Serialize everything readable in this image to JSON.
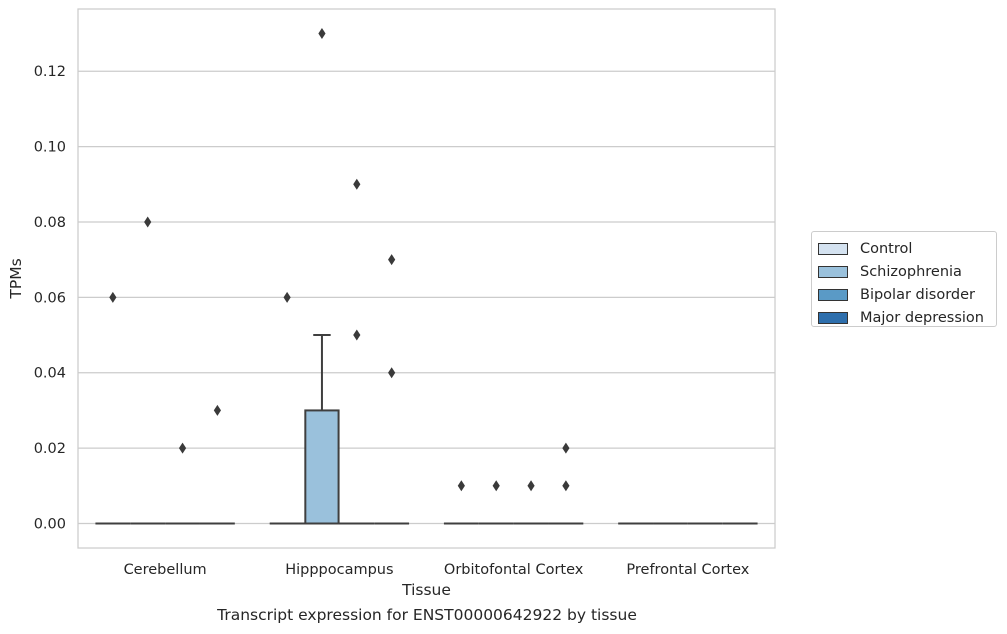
{
  "chart_data": {
    "type": "box",
    "xlabel": "Tissue",
    "ylabel": "TPMs",
    "ylim": [
      -0.0065,
      0.1365
    ],
    "yticks": [
      0.0,
      0.02,
      0.04,
      0.06,
      0.08,
      0.1,
      0.12
    ],
    "ytick_labels": [
      "0.00",
      "0.02",
      "0.04",
      "0.06",
      "0.08",
      "0.10",
      "0.12"
    ],
    "categories": [
      "Cerebellum",
      "Hipppocampus",
      "Orbitofontal Cortex",
      "Prefrontal Cortex"
    ],
    "grid": "horizontal",
    "legend_position": "right",
    "series": [
      {
        "name": "Control",
        "color": "#d4e2f0",
        "boxes": [
          {
            "q1": 0,
            "median": 0,
            "q3": 0,
            "whisker_low": 0,
            "whisker_high": 0,
            "outliers": [
              0.06
            ]
          },
          {
            "q1": 0,
            "median": 0,
            "q3": 0,
            "whisker_low": 0,
            "whisker_high": 0,
            "outliers": [
              0.06
            ]
          },
          {
            "q1": 0,
            "median": 0,
            "q3": 0,
            "whisker_low": 0,
            "whisker_high": 0,
            "outliers": [
              0.01
            ]
          },
          {
            "q1": 0,
            "median": 0,
            "q3": 0,
            "whisker_low": 0,
            "whisker_high": 0,
            "outliers": []
          }
        ]
      },
      {
        "name": "Schizophrenia",
        "color": "#9ac1dc",
        "boxes": [
          {
            "q1": 0,
            "median": 0,
            "q3": 0,
            "whisker_low": 0,
            "whisker_high": 0,
            "outliers": [
              0.08
            ]
          },
          {
            "q1": 0,
            "median": 0,
            "q3": 0.03,
            "whisker_low": 0,
            "whisker_high": 0.05,
            "outliers": [
              0.13
            ]
          },
          {
            "q1": 0,
            "median": 0,
            "q3": 0,
            "whisker_low": 0,
            "whisker_high": 0,
            "outliers": [
              0.01
            ]
          },
          {
            "q1": 0,
            "median": 0,
            "q3": 0,
            "whisker_low": 0,
            "whisker_high": 0,
            "outliers": []
          }
        ]
      },
      {
        "name": "Bipolar disorder",
        "color": "#5a9ac6",
        "boxes": [
          {
            "q1": 0,
            "median": 0,
            "q3": 0,
            "whisker_low": 0,
            "whisker_high": 0,
            "outliers": [
              0.02
            ]
          },
          {
            "q1": 0,
            "median": 0,
            "q3": 0,
            "whisker_low": 0,
            "whisker_high": 0,
            "outliers": [
              0.05,
              0.09
            ]
          },
          {
            "q1": 0,
            "median": 0,
            "q3": 0,
            "whisker_low": 0,
            "whisker_high": 0,
            "outliers": [
              0.01
            ]
          },
          {
            "q1": 0,
            "median": 0,
            "q3": 0,
            "whisker_low": 0,
            "whisker_high": 0,
            "outliers": []
          }
        ]
      },
      {
        "name": "Major depression",
        "color": "#2e6fad",
        "boxes": [
          {
            "q1": 0,
            "median": 0,
            "q3": 0,
            "whisker_low": 0,
            "whisker_high": 0,
            "outliers": [
              0.03
            ]
          },
          {
            "q1": 0,
            "median": 0,
            "q3": 0,
            "whisker_low": 0,
            "whisker_high": 0,
            "outliers": [
              0.04,
              0.07
            ]
          },
          {
            "q1": 0,
            "median": 0,
            "q3": 0,
            "whisker_low": 0,
            "whisker_high": 0,
            "outliers": [
              0.01,
              0.02
            ]
          },
          {
            "q1": 0,
            "median": 0,
            "q3": 0,
            "whisker_low": 0,
            "whisker_high": 0,
            "outliers": []
          }
        ]
      }
    ],
    "caption": "Transcript expression for ENST00000642922 by tissue"
  }
}
